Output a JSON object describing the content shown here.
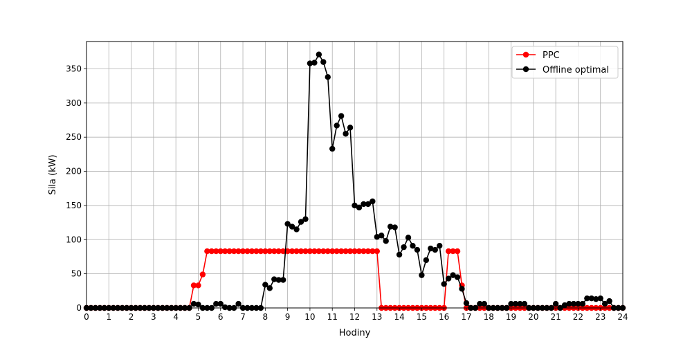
{
  "chart_data": {
    "type": "line",
    "title": "",
    "xlabel": "Hodiny",
    "ylabel": "Sila (kW)",
    "xlim": [
      0,
      24
    ],
    "ylim": [
      0,
      390
    ],
    "x_ticks": [
      0,
      1,
      2,
      3,
      4,
      5,
      6,
      7,
      8,
      9,
      10,
      11,
      12,
      13,
      14,
      15,
      16,
      17,
      18,
      19,
      20,
      21,
      22,
      23,
      24
    ],
    "y_ticks": [
      0,
      50,
      100,
      150,
      200,
      250,
      300,
      350
    ],
    "grid": true,
    "legend_position": "top-right",
    "series": [
      {
        "name": "PPC",
        "color": "#ff0000",
        "marker": "circle",
        "points": [
          [
            0,
            0
          ],
          [
            0.2,
            0
          ],
          [
            0.4,
            0
          ],
          [
            0.6,
            0
          ],
          [
            0.8,
            0
          ],
          [
            1,
            0
          ],
          [
            1.2,
            0
          ],
          [
            1.4,
            0
          ],
          [
            1.6,
            0
          ],
          [
            1.8,
            0
          ],
          [
            2,
            0
          ],
          [
            2.2,
            0
          ],
          [
            2.4,
            0
          ],
          [
            2.6,
            0
          ],
          [
            2.8,
            0
          ],
          [
            3,
            0
          ],
          [
            3.2,
            0
          ],
          [
            3.4,
            0
          ],
          [
            3.6,
            0
          ],
          [
            3.8,
            0
          ],
          [
            4,
            0
          ],
          [
            4.2,
            0
          ],
          [
            4.4,
            0
          ],
          [
            4.6,
            0
          ],
          [
            4.8,
            33
          ],
          [
            5,
            33
          ],
          [
            5.2,
            49
          ],
          [
            5.4,
            83
          ],
          [
            5.6,
            83
          ],
          [
            5.8,
            83
          ],
          [
            6,
            83
          ],
          [
            6.2,
            83
          ],
          [
            6.4,
            83
          ],
          [
            6.6,
            83
          ],
          [
            6.8,
            83
          ],
          [
            7,
            83
          ],
          [
            7.2,
            83
          ],
          [
            7.4,
            83
          ],
          [
            7.6,
            83
          ],
          [
            7.8,
            83
          ],
          [
            8,
            83
          ],
          [
            8.2,
            83
          ],
          [
            8.4,
            83
          ],
          [
            8.6,
            83
          ],
          [
            8.8,
            83
          ],
          [
            9,
            83
          ],
          [
            9.2,
            83
          ],
          [
            9.4,
            83
          ],
          [
            9.6,
            83
          ],
          [
            9.8,
            83
          ],
          [
            10,
            83
          ],
          [
            10.2,
            83
          ],
          [
            10.4,
            83
          ],
          [
            10.6,
            83
          ],
          [
            10.8,
            83
          ],
          [
            11,
            83
          ],
          [
            11.2,
            83
          ],
          [
            11.4,
            83
          ],
          [
            11.6,
            83
          ],
          [
            11.8,
            83
          ],
          [
            12,
            83
          ],
          [
            12.2,
            83
          ],
          [
            12.4,
            83
          ],
          [
            12.6,
            83
          ],
          [
            12.8,
            83
          ],
          [
            13,
            83
          ],
          [
            13.2,
            0
          ],
          [
            13.4,
            0
          ],
          [
            13.6,
            0
          ],
          [
            13.8,
            0
          ],
          [
            14,
            0
          ],
          [
            14.2,
            0
          ],
          [
            14.4,
            0
          ],
          [
            14.6,
            0
          ],
          [
            14.8,
            0
          ],
          [
            15,
            0
          ],
          [
            15.2,
            0
          ],
          [
            15.4,
            0
          ],
          [
            15.6,
            0
          ],
          [
            15.8,
            0
          ],
          [
            16,
            0
          ],
          [
            16.2,
            83
          ],
          [
            16.4,
            83
          ],
          [
            16.6,
            83
          ],
          [
            16.8,
            33
          ],
          [
            17,
            0
          ],
          [
            17.2,
            0
          ],
          [
            17.4,
            0
          ],
          [
            17.6,
            0
          ],
          [
            17.8,
            0
          ],
          [
            18,
            0
          ],
          [
            18.2,
            0
          ],
          [
            18.4,
            0
          ],
          [
            18.6,
            0
          ],
          [
            18.8,
            0
          ],
          [
            19,
            0
          ],
          [
            19.2,
            0
          ],
          [
            19.4,
            0
          ],
          [
            19.6,
            0
          ],
          [
            19.8,
            0
          ],
          [
            20,
            0
          ],
          [
            20.2,
            0
          ],
          [
            20.4,
            0
          ],
          [
            20.6,
            0
          ],
          [
            20.8,
            0
          ],
          [
            21,
            0
          ],
          [
            21.2,
            0
          ],
          [
            21.4,
            0
          ],
          [
            21.6,
            0
          ],
          [
            21.8,
            0
          ],
          [
            22,
            0
          ],
          [
            22.2,
            0
          ],
          [
            22.4,
            0
          ],
          [
            22.6,
            0
          ],
          [
            22.8,
            0
          ],
          [
            23,
            0
          ],
          [
            23.2,
            0
          ],
          [
            23.4,
            0
          ],
          [
            23.6,
            0
          ],
          [
            23.8,
            0
          ],
          [
            24,
            0
          ]
        ]
      },
      {
        "name": "Offline optimal",
        "color": "#000000",
        "marker": "circle",
        "points": [
          [
            0,
            0
          ],
          [
            0.2,
            0
          ],
          [
            0.4,
            0
          ],
          [
            0.6,
            0
          ],
          [
            0.8,
            0
          ],
          [
            1,
            0
          ],
          [
            1.2,
            0
          ],
          [
            1.4,
            0
          ],
          [
            1.6,
            0
          ],
          [
            1.8,
            0
          ],
          [
            2,
            0
          ],
          [
            2.2,
            0
          ],
          [
            2.4,
            0
          ],
          [
            2.6,
            0
          ],
          [
            2.8,
            0
          ],
          [
            3,
            0
          ],
          [
            3.2,
            0
          ],
          [
            3.4,
            0
          ],
          [
            3.6,
            0
          ],
          [
            3.8,
            0
          ],
          [
            4,
            0
          ],
          [
            4.2,
            0
          ],
          [
            4.4,
            0
          ],
          [
            4.6,
            0
          ],
          [
            4.8,
            6
          ],
          [
            5,
            5
          ],
          [
            5.2,
            0
          ],
          [
            5.4,
            0
          ],
          [
            5.6,
            0
          ],
          [
            5.8,
            6
          ],
          [
            6,
            6
          ],
          [
            6.2,
            1
          ],
          [
            6.4,
            0
          ],
          [
            6.6,
            0
          ],
          [
            6.8,
            6
          ],
          [
            7,
            0
          ],
          [
            7.2,
            0
          ],
          [
            7.4,
            0
          ],
          [
            7.6,
            0
          ],
          [
            7.8,
            0
          ],
          [
            8,
            34
          ],
          [
            8.2,
            29
          ],
          [
            8.4,
            42
          ],
          [
            8.6,
            41
          ],
          [
            8.8,
            41
          ],
          [
            9,
            123
          ],
          [
            9.2,
            119
          ],
          [
            9.4,
            115
          ],
          [
            9.6,
            126
          ],
          [
            9.8,
            130
          ],
          [
            10,
            358
          ],
          [
            10.2,
            359
          ],
          [
            10.4,
            371
          ],
          [
            10.6,
            360
          ],
          [
            10.8,
            338
          ],
          [
            11,
            233
          ],
          [
            11.2,
            267
          ],
          [
            11.4,
            281
          ],
          [
            11.6,
            255
          ],
          [
            11.8,
            264
          ],
          [
            12,
            150
          ],
          [
            12.2,
            147
          ],
          [
            12.4,
            152
          ],
          [
            12.6,
            152
          ],
          [
            12.8,
            156
          ],
          [
            13,
            104
          ],
          [
            13.2,
            106
          ],
          [
            13.4,
            98
          ],
          [
            13.6,
            119
          ],
          [
            13.8,
            118
          ],
          [
            14,
            78
          ],
          [
            14.2,
            89
          ],
          [
            14.4,
            103
          ],
          [
            14.6,
            91
          ],
          [
            14.8,
            85
          ],
          [
            15,
            48
          ],
          [
            15.2,
            70
          ],
          [
            15.4,
            87
          ],
          [
            15.6,
            85
          ],
          [
            15.8,
            91
          ],
          [
            16,
            35
          ],
          [
            16.2,
            43
          ],
          [
            16.4,
            48
          ],
          [
            16.6,
            45
          ],
          [
            16.8,
            28
          ],
          [
            17,
            7
          ],
          [
            17.2,
            0
          ],
          [
            17.4,
            0
          ],
          [
            17.6,
            6
          ],
          [
            17.8,
            6
          ],
          [
            18,
            0
          ],
          [
            18.2,
            0
          ],
          [
            18.4,
            0
          ],
          [
            18.6,
            0
          ],
          [
            18.8,
            0
          ],
          [
            19,
            6
          ],
          [
            19.2,
            6
          ],
          [
            19.4,
            6
          ],
          [
            19.6,
            6
          ],
          [
            19.8,
            0
          ],
          [
            20,
            0
          ],
          [
            20.2,
            0
          ],
          [
            20.4,
            0
          ],
          [
            20.6,
            0
          ],
          [
            20.8,
            0
          ],
          [
            21,
            6
          ],
          [
            21.2,
            0
          ],
          [
            21.4,
            4
          ],
          [
            21.6,
            6
          ],
          [
            21.8,
            6
          ],
          [
            22,
            6
          ],
          [
            22.2,
            6
          ],
          [
            22.4,
            14
          ],
          [
            22.6,
            14
          ],
          [
            22.8,
            13
          ],
          [
            23,
            14
          ],
          [
            23.2,
            6
          ],
          [
            23.4,
            10
          ],
          [
            23.6,
            0
          ],
          [
            23.8,
            0
          ],
          [
            24,
            0
          ]
        ]
      }
    ]
  }
}
